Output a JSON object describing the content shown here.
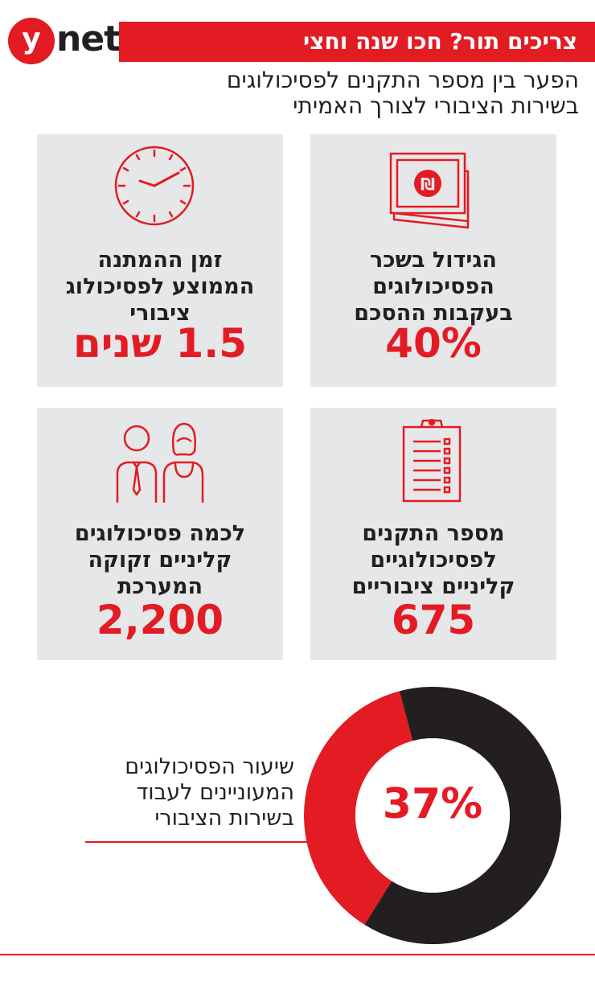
{
  "brand": {
    "logo_y": "y",
    "logo_net": "net"
  },
  "header": {
    "title": "צריכים תור? חכו שנה וחצי",
    "subtitle_line1": "הפער בין מספר התקנים לפסיכולוגים",
    "subtitle_line2": "בשירות הציבורי לצורך האמיתי"
  },
  "cards": {
    "raise": {
      "icon": "money-icon",
      "label_lines": [
        "הגידול בשכר",
        "הפסיכולוגים",
        "בעקבות ההסכם"
      ],
      "value": "40%"
    },
    "wait": {
      "icon": "clock-icon",
      "label_lines": [
        "זמן ההמתנה",
        "הממוצע לפסיכולוג",
        "ציבורי"
      ],
      "value": "1.5 שנים"
    },
    "positions": {
      "icon": "clipboard-icon",
      "label_lines": [
        "מספר התקנים",
        "לפסיכולוגיים",
        "קליניים ציבוריים"
      ],
      "value": "675"
    },
    "needed": {
      "icon": "people-icon",
      "label_lines": [
        "לכמה פסיכולוגים",
        "קליניים זקוקה",
        "המערכת"
      ],
      "value": "2,200"
    }
  },
  "chart_data": {
    "type": "pie",
    "style": "donut",
    "value_label": "37%",
    "label_lines": [
      "שיעור הפסיכולוגים",
      "המעוניינים לעבוד",
      "בשירות הציבורי"
    ],
    "slices": [
      {
        "value": 37,
        "color": "#e31b23"
      },
      {
        "value": 63,
        "color": "#231f20"
      }
    ]
  },
  "colors": {
    "accent": "#e31b23",
    "dark": "#231f20",
    "card_bg": "#e6e7e8"
  }
}
